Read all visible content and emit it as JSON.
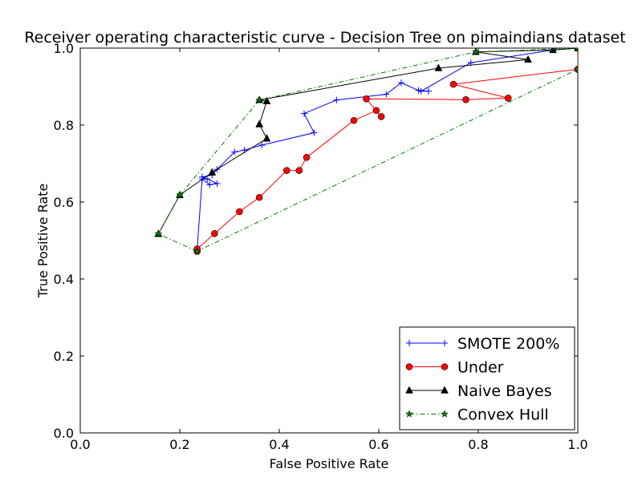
{
  "chart_data": {
    "type": "line",
    "title": "Receiver operating characteristic curve - Decision Tree on pimaindians dataset",
    "xlabel": "False Positive Rate",
    "ylabel": "True Positive Rate",
    "xlim": [
      0.0,
      1.0
    ],
    "ylim": [
      0.0,
      1.0
    ],
    "xticks": [
      "0.0",
      "0.2",
      "0.4",
      "0.6",
      "0.8",
      "1.0"
    ],
    "yticks": [
      "0.0",
      "0.2",
      "0.4",
      "0.6",
      "0.8",
      "1.0"
    ],
    "legend_position": "lower-right",
    "series": [
      {
        "name": "SMOTE 200%",
        "color": "#0000ff",
        "marker": "plus",
        "linestyle": "solid",
        "points": [
          [
            0.235,
            0.478
          ],
          [
            0.245,
            0.66
          ],
          [
            0.26,
            0.645
          ],
          [
            0.275,
            0.648
          ],
          [
            0.255,
            0.66
          ],
          [
            0.245,
            0.665
          ],
          [
            0.265,
            0.67
          ],
          [
            0.275,
            0.685
          ],
          [
            0.31,
            0.73
          ],
          [
            0.33,
            0.735
          ],
          [
            0.365,
            0.748
          ],
          [
            0.47,
            0.78
          ],
          [
            0.45,
            0.83
          ],
          [
            0.515,
            0.865
          ],
          [
            0.615,
            0.88
          ],
          [
            0.645,
            0.91
          ],
          [
            0.68,
            0.89
          ],
          [
            0.7,
            0.888
          ],
          [
            0.685,
            0.888
          ],
          [
            0.785,
            0.962
          ],
          [
            0.95,
            0.995
          ],
          [
            1.0,
            1.0
          ]
        ]
      },
      {
        "name": "Under",
        "color": "#ff0000",
        "marker": "circle",
        "linestyle": "solid",
        "points": [
          [
            0.235,
            0.472
          ],
          [
            0.235,
            0.478
          ],
          [
            0.27,
            0.518
          ],
          [
            0.32,
            0.575
          ],
          [
            0.36,
            0.612
          ],
          [
            0.415,
            0.682
          ],
          [
            0.44,
            0.682
          ],
          [
            0.455,
            0.716
          ],
          [
            0.55,
            0.812
          ],
          [
            0.595,
            0.838
          ],
          [
            0.605,
            0.822
          ],
          [
            0.575,
            0.868
          ],
          [
            0.775,
            0.866
          ],
          [
            0.86,
            0.87
          ],
          [
            0.75,
            0.906
          ],
          [
            1.0,
            0.945
          ],
          [
            1.0,
            1.0
          ]
        ]
      },
      {
        "name": "Naive Bayes",
        "color": "#000000",
        "marker": "triangle",
        "linestyle": "solid",
        "points": [
          [
            0.157,
            0.517
          ],
          [
            0.2,
            0.618
          ],
          [
            0.265,
            0.677
          ],
          [
            0.375,
            0.765
          ],
          [
            0.36,
            0.802
          ],
          [
            0.375,
            0.862
          ],
          [
            0.36,
            0.865
          ],
          [
            0.72,
            0.948
          ],
          [
            0.9,
            0.97
          ],
          [
            0.795,
            0.99
          ],
          [
            0.95,
            0.995
          ],
          [
            1.0,
            1.0
          ]
        ]
      },
      {
        "name": "Convex Hull",
        "color": "#007f00",
        "marker": "star",
        "linestyle": "dashdot",
        "points": [
          [
            0.235,
            0.472
          ],
          [
            0.157,
            0.517
          ],
          [
            0.2,
            0.618
          ],
          [
            0.36,
            0.865
          ],
          [
            0.795,
            0.99
          ],
          [
            1.0,
            1.0
          ],
          [
            1.0,
            0.945
          ],
          [
            0.235,
            0.472
          ]
        ]
      }
    ]
  }
}
